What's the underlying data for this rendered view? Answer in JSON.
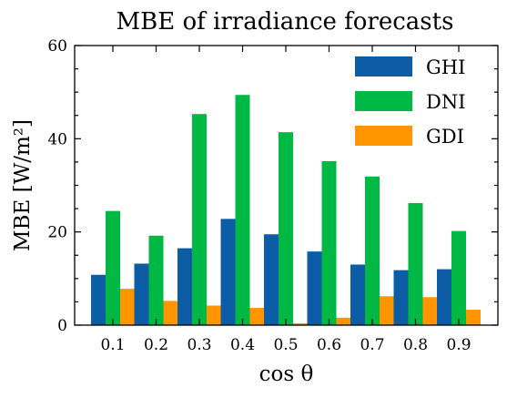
{
  "chart_data": {
    "type": "bar",
    "title": "MBE of irradiance forecasts",
    "xlabel": "cos θ",
    "ylabel": "MBE [W/m²]",
    "categories": [
      "0.1",
      "0.2",
      "0.3",
      "0.4",
      "0.5",
      "0.6",
      "0.7",
      "0.8",
      "0.9"
    ],
    "series": [
      {
        "name": "GHI",
        "color": "#0c5da5",
        "values": [
          10.8,
          13.2,
          16.5,
          22.8,
          19.5,
          15.8,
          13.0,
          11.8,
          12.0
        ]
      },
      {
        "name": "DNI",
        "color": "#00b945",
        "values": [
          24.5,
          19.2,
          45.3,
          49.4,
          41.4,
          35.2,
          31.9,
          26.2,
          20.2
        ]
      },
      {
        "name": "GDI",
        "color": "#ff9500",
        "values": [
          7.8,
          5.2,
          4.2,
          3.7,
          0.4,
          1.6,
          6.2,
          6.0,
          3.3
        ]
      }
    ],
    "ylim": [
      0,
      60
    ],
    "yticks": [
      0,
      20,
      40,
      60
    ],
    "legend_position": "top-right",
    "grid": false
  }
}
